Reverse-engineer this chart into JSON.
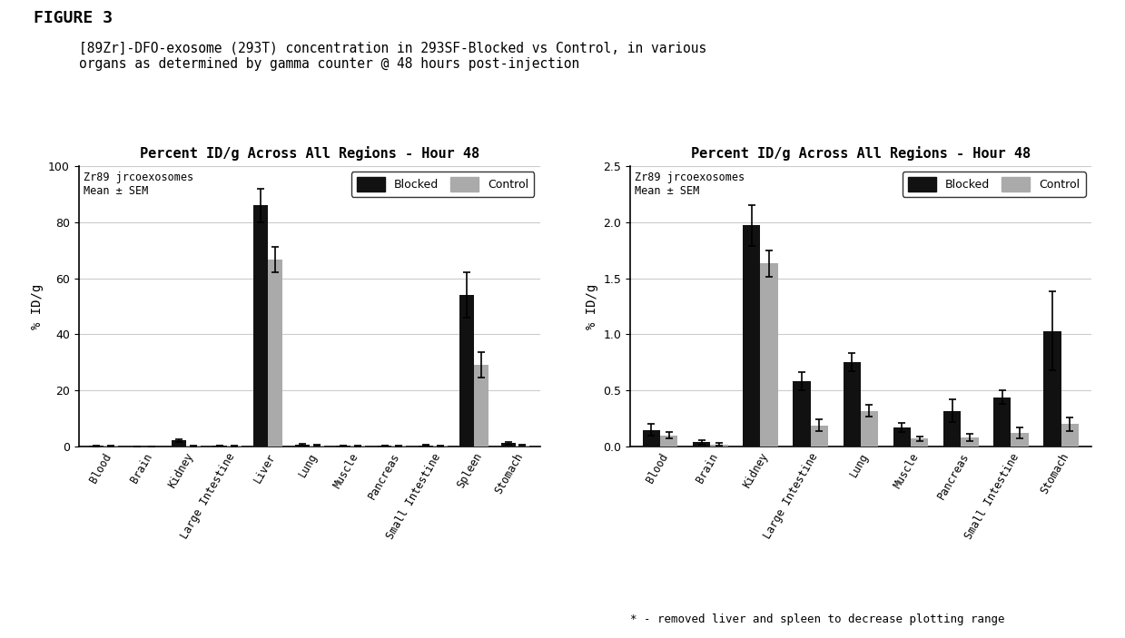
{
  "figure_label": "FIGURE 3",
  "subtitle_line1": "[89Zr]-DFO-exosome (293T) concentration in 293SF-Blocked vs Control, in various",
  "subtitle_line2": "organs as determined by gamma counter @ 48 hours post-injection",
  "subplot1_title": "Percent ID/g Across All Regions - Hour 48",
  "subplot2_title": "Percent ID/g Across All Regions - Hour 48",
  "ylabel": "% ID/g",
  "annotation_label": "Zr89 jrcoexosomes\nMean ± SEM",
  "footnote": "* - removed liver and spleen to decrease plotting range",
  "legend_blocked": "Blocked",
  "legend_control": "Control",
  "color_blocked": "#111111",
  "color_control": "#aaaaaa",
  "plot1_categories": [
    "Blood",
    "Brain",
    "Kidney",
    "Large Intestine",
    "Liver",
    "Lung",
    "Muscle",
    "Pancreas",
    "Small Intestine",
    "Spleen",
    "Stomach"
  ],
  "plot1_blocked": [
    0.3,
    0.0,
    2.2,
    0.3,
    86.0,
    0.8,
    0.3,
    0.3,
    0.5,
    54.0,
    1.2
  ],
  "plot1_control": [
    0.2,
    0.0,
    0.3,
    0.2,
    66.5,
    0.4,
    0.2,
    0.2,
    0.3,
    29.0,
    0.4
  ],
  "plot1_blocked_err": [
    0.2,
    0.0,
    0.5,
    0.1,
    6.0,
    0.3,
    0.1,
    0.1,
    0.2,
    8.0,
    0.4
  ],
  "plot1_control_err": [
    0.1,
    0.0,
    0.2,
    0.1,
    4.5,
    0.2,
    0.1,
    0.1,
    0.15,
    4.5,
    0.2
  ],
  "plot1_ylim": [
    0,
    100
  ],
  "plot1_yticks": [
    0,
    20,
    40,
    60,
    80,
    100
  ],
  "plot2_categories": [
    "Blood",
    "Brain",
    "Kidney",
    "Large Intestine",
    "Lung",
    "Muscle",
    "Pancreas",
    "Small Intestine",
    "Stomach"
  ],
  "plot2_blocked": [
    0.15,
    0.04,
    1.97,
    0.58,
    0.75,
    0.17,
    0.32,
    0.44,
    1.03
  ],
  "plot2_control": [
    0.1,
    0.02,
    1.63,
    0.19,
    0.32,
    0.07,
    0.08,
    0.12,
    0.2
  ],
  "plot2_blocked_err": [
    0.05,
    0.02,
    0.18,
    0.08,
    0.08,
    0.04,
    0.1,
    0.06,
    0.35
  ],
  "plot2_control_err": [
    0.03,
    0.01,
    0.12,
    0.05,
    0.05,
    0.02,
    0.03,
    0.05,
    0.06
  ],
  "plot2_ylim": [
    0,
    2.5
  ],
  "plot2_yticks": [
    0,
    0.5,
    1.0,
    1.5,
    2.0,
    2.5
  ],
  "background_color": "#ffffff",
  "grid_color": "#cccccc"
}
